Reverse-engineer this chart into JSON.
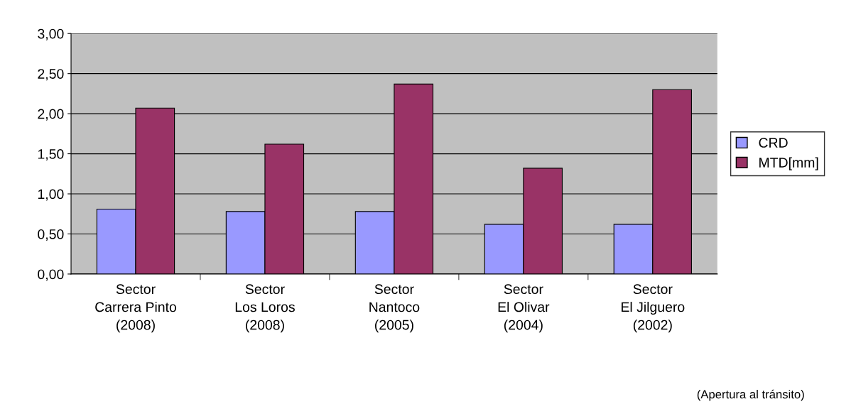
{
  "chart_data": {
    "type": "bar",
    "categories": [
      "Sector\nCarrera Pinto\n(2008)",
      "Sector\nLos Loros\n(2008)",
      "Sector\nNantoco\n(2005)",
      "Sector\nEl Olivar\n(2004)",
      "Sector\nEl Jilguero\n(2002)"
    ],
    "series": [
      {
        "name": "CRD",
        "color": "#9999ff",
        "values": [
          0.81,
          0.78,
          0.78,
          0.62,
          0.62
        ]
      },
      {
        "name": "MTD[mm]",
        "color": "#993366",
        "values": [
          2.07,
          1.62,
          2.37,
          1.32,
          2.3
        ]
      }
    ],
    "ylim": [
      0,
      3
    ],
    "yticks": [
      {
        "value": 0,
        "label": "0,00"
      },
      {
        "value": 0.5,
        "label": "0,50"
      },
      {
        "value": 1,
        "label": "1,00"
      },
      {
        "value": 1.5,
        "label": "1,50"
      },
      {
        "value": 2,
        "label": "2,00"
      },
      {
        "value": 2.5,
        "label": "2,50"
      },
      {
        "value": 3,
        "label": "3,00"
      }
    ],
    "grid": "y",
    "legend": "right",
    "annotations": [
      "(Apertura al tránsito)"
    ]
  }
}
